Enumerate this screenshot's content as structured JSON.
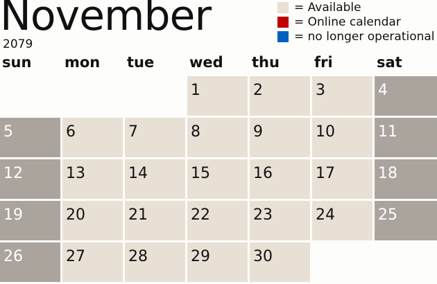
{
  "month": "November",
  "year": "2079",
  "legend": [
    {
      "label": "= Available",
      "color": "#e9e0d5"
    },
    {
      "label": "= Online calendar",
      "color": "#c00000"
    },
    {
      "label": "= no longer operational",
      "color": "#0060c0"
    }
  ],
  "colors": {
    "available": "#e9e0d5",
    "weekend": "#aaa49c"
  },
  "weekdays": [
    "sun",
    "mon",
    "tue",
    "wed",
    "thu",
    "fri",
    "sat"
  ],
  "first_weekday": 3,
  "days": 30
}
